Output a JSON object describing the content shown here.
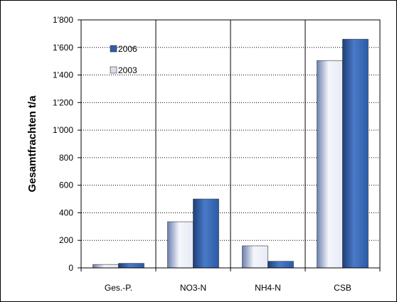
{
  "chart_data": {
    "type": "bar",
    "ylabel": "Gesamtfrachten t/a",
    "xlabel": "",
    "ylim": [
      0,
      1800
    ],
    "yticks": [
      "0",
      "200",
      "400",
      "600",
      "800",
      "1'000",
      "1'200",
      "1'400",
      "1'600",
      "1'800"
    ],
    "ytick_values": [
      0,
      200,
      400,
      600,
      800,
      1000,
      1200,
      1400,
      1600,
      1800
    ],
    "grid": true,
    "legend_position": "top-left",
    "categories": [
      "Ges.-P.",
      "NO3-N",
      "NH4-N",
      "CSB"
    ],
    "series": [
      {
        "name": "2003",
        "values": [
          25,
          335,
          160,
          1505
        ],
        "color": "#d8deee"
      },
      {
        "name": "2006",
        "values": [
          33,
          500,
          48,
          1660
        ],
        "color": "#2f5da8"
      }
    ],
    "legend_order": [
      "2006",
      "2003"
    ]
  }
}
